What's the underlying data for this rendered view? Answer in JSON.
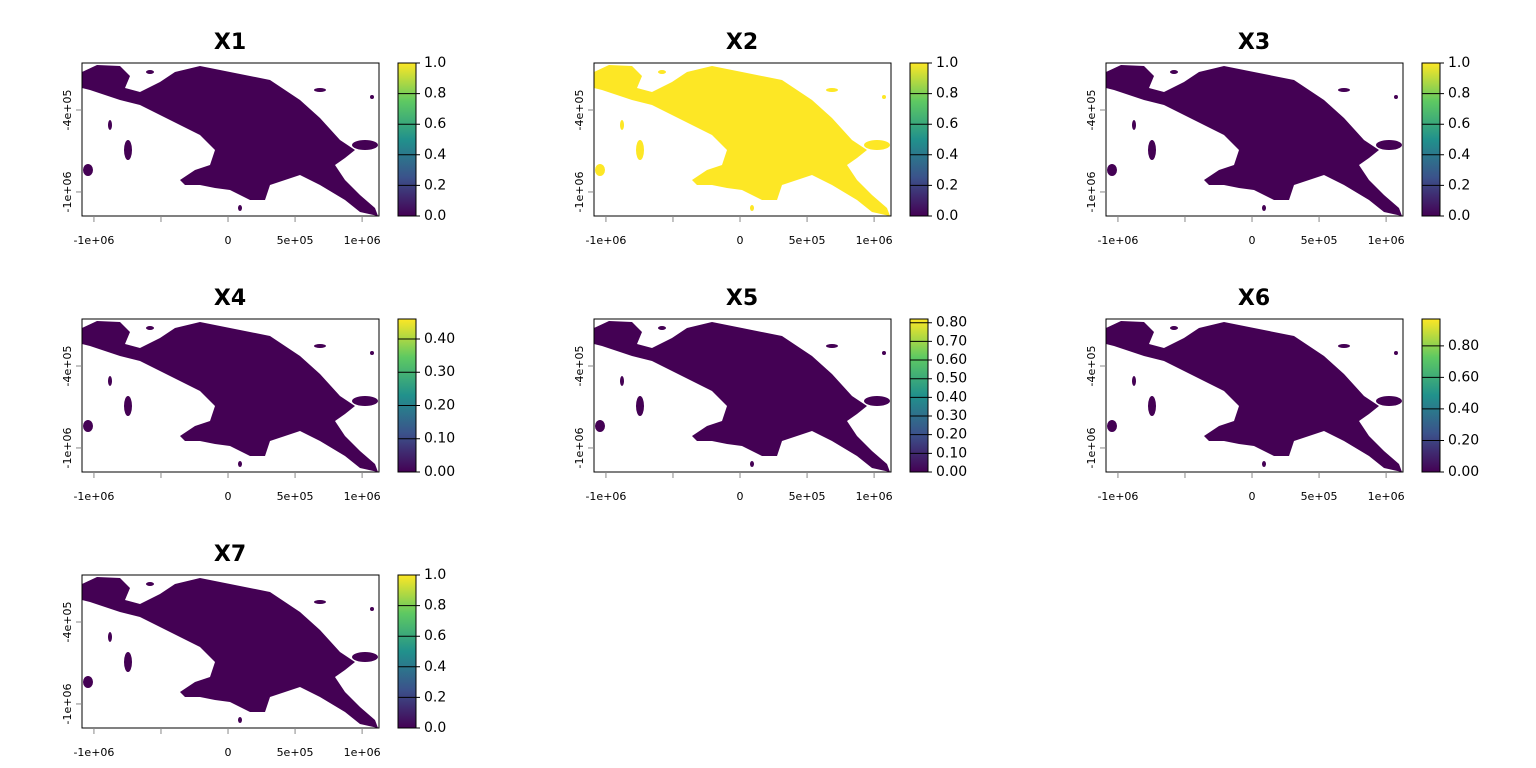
{
  "panels": [
    {
      "title": "X1",
      "color": "#440154",
      "xlim": [
        -1089000,
        1126000
      ],
      "ylim": [
        -1176000,
        -56000
      ],
      "xticks": [
        {
          "value": -1000000,
          "label": "-1e+06"
        },
        {
          "value": -500000,
          "label": null
        },
        0,
        {
          "value": 500000,
          "label": "5e+05"
        },
        {
          "value": 1000000,
          "label": "1e+06"
        }
      ],
      "yticks": [
        {
          "value": -400000,
          "label": "-4e+05"
        },
        {
          "value": -1000000,
          "label": "-1e+06"
        }
      ],
      "clim": [
        0,
        1
      ],
      "cticks": [
        {
          "value": 0,
          "label": "0.0"
        },
        0.2,
        0.4,
        0.6,
        0.8,
        {
          "value": 1,
          "label": "1.0"
        }
      ]
    },
    {
      "title": "X2",
      "color": "#fde725",
      "xlim": [
        -1089000,
        1126000
      ],
      "ylim": [
        -1176000,
        -56000
      ],
      "xticks": [
        {
          "value": -1000000,
          "label": "-1e+06"
        },
        {
          "value": -500000,
          "label": null
        },
        0,
        {
          "value": 500000,
          "label": "5e+05"
        },
        {
          "value": 1000000,
          "label": "1e+06"
        }
      ],
      "yticks": [
        {
          "value": -400000,
          "label": "-4e+05"
        },
        {
          "value": -1000000,
          "label": "-1e+06"
        }
      ],
      "clim": [
        0,
        1
      ],
      "cticks": [
        {
          "value": 0,
          "label": "0.0"
        },
        0.2,
        0.4,
        0.6,
        0.8,
        {
          "value": 1,
          "label": "1.0"
        }
      ]
    },
    {
      "title": "X3",
      "color": "#440154",
      "xlim": [
        -1089000,
        1126000
      ],
      "ylim": [
        -1176000,
        -56000
      ],
      "xticks": [
        {
          "value": -1000000,
          "label": "-1e+06"
        },
        {
          "value": -500000,
          "label": null
        },
        0,
        {
          "value": 500000,
          "label": "5e+05"
        },
        {
          "value": 1000000,
          "label": "1e+06"
        }
      ],
      "yticks": [
        {
          "value": -400000,
          "label": "-4e+05"
        },
        {
          "value": -1000000,
          "label": "-1e+06"
        }
      ],
      "clim": [
        0,
        1
      ],
      "cticks": [
        {
          "value": 0,
          "label": "0.0"
        },
        0.2,
        0.4,
        0.6,
        0.8,
        {
          "value": 1,
          "label": "1.0"
        }
      ]
    },
    {
      "title": "X4",
      "color": "#440154",
      "xlim": [
        -1089000,
        1126000
      ],
      "ylim": [
        -1176000,
        -56000
      ],
      "xticks": [
        {
          "value": -1000000,
          "label": "-1e+06"
        },
        {
          "value": -500000,
          "label": null
        },
        0,
        {
          "value": 500000,
          "label": "5e+05"
        },
        {
          "value": 1000000,
          "label": "1e+06"
        }
      ],
      "yticks": [
        {
          "value": -400000,
          "label": "-4e+05"
        },
        {
          "value": -1000000,
          "label": "-1e+06"
        }
      ],
      "clim": [
        0,
        0.46
      ],
      "cticks": [
        {
          "value": 0,
          "label": "0.00"
        },
        {
          "value": 0.1,
          "label": "0.10"
        },
        {
          "value": 0.2,
          "label": "0.20"
        },
        {
          "value": 0.3,
          "label": "0.30"
        },
        {
          "value": 0.4,
          "label": "0.40"
        }
      ]
    },
    {
      "title": "X5",
      "color": "#440154",
      "xlim": [
        -1089000,
        1126000
      ],
      "ylim": [
        -1176000,
        -56000
      ],
      "xticks": [
        {
          "value": -1000000,
          "label": "-1e+06"
        },
        {
          "value": -500000,
          "label": null
        },
        0,
        {
          "value": 500000,
          "label": "5e+05"
        },
        {
          "value": 1000000,
          "label": "1e+06"
        }
      ],
      "yticks": [
        {
          "value": -400000,
          "label": "-4e+05"
        },
        {
          "value": -1000000,
          "label": "-1e+06"
        }
      ],
      "clim": [
        0,
        0.82
      ],
      "cticks": [
        {
          "value": 0,
          "label": "0.00"
        },
        {
          "value": 0.1,
          "label": "0.10"
        },
        {
          "value": 0.2,
          "label": "0.20"
        },
        {
          "value": 0.3,
          "label": "0.30"
        },
        {
          "value": 0.4,
          "label": "0.40"
        },
        {
          "value": 0.5,
          "label": "0.50"
        },
        {
          "value": 0.6,
          "label": "0.60"
        },
        {
          "value": 0.7,
          "label": "0.70"
        },
        {
          "value": 0.8,
          "label": "0.80"
        }
      ]
    },
    {
      "title": "X6",
      "color": "#440154",
      "xlim": [
        -1089000,
        1126000
      ],
      "ylim": [
        -1176000,
        -56000
      ],
      "xticks": [
        {
          "value": -1000000,
          "label": "-1e+06"
        },
        {
          "value": -500000,
          "label": null
        },
        0,
        {
          "value": 500000,
          "label": "5e+05"
        },
        {
          "value": 1000000,
          "label": "1e+06"
        }
      ],
      "yticks": [
        {
          "value": -400000,
          "label": "-4e+05"
        },
        {
          "value": -1000000,
          "label": "-1e+06"
        }
      ],
      "clim": [
        0,
        0.97
      ],
      "cticks": [
        {
          "value": 0,
          "label": "0.00"
        },
        {
          "value": 0.2,
          "label": "0.20"
        },
        {
          "value": 0.4,
          "label": "0.40"
        },
        {
          "value": 0.6,
          "label": "0.60"
        },
        {
          "value": 0.8,
          "label": "0.80"
        }
      ]
    },
    {
      "title": "X7",
      "color": "#440154",
      "xlim": [
        -1089000,
        1126000
      ],
      "ylim": [
        -1176000,
        -56000
      ],
      "xticks": [
        {
          "value": -1000000,
          "label": "-1e+06"
        },
        {
          "value": -500000,
          "label": null
        },
        0,
        {
          "value": 500000,
          "label": "5e+05"
        },
        {
          "value": 1000000,
          "label": "1e+06"
        }
      ],
      "yticks": [
        {
          "value": -400000,
          "label": "-4e+05"
        },
        {
          "value": -1000000,
          "label": "-1e+06"
        }
      ],
      "clim": [
        0,
        1
      ],
      "cticks": [
        {
          "value": 0,
          "label": "0.0"
        },
        0.2,
        0.4,
        0.6,
        0.8,
        {
          "value": 1,
          "label": "1.0"
        }
      ]
    }
  ]
}
